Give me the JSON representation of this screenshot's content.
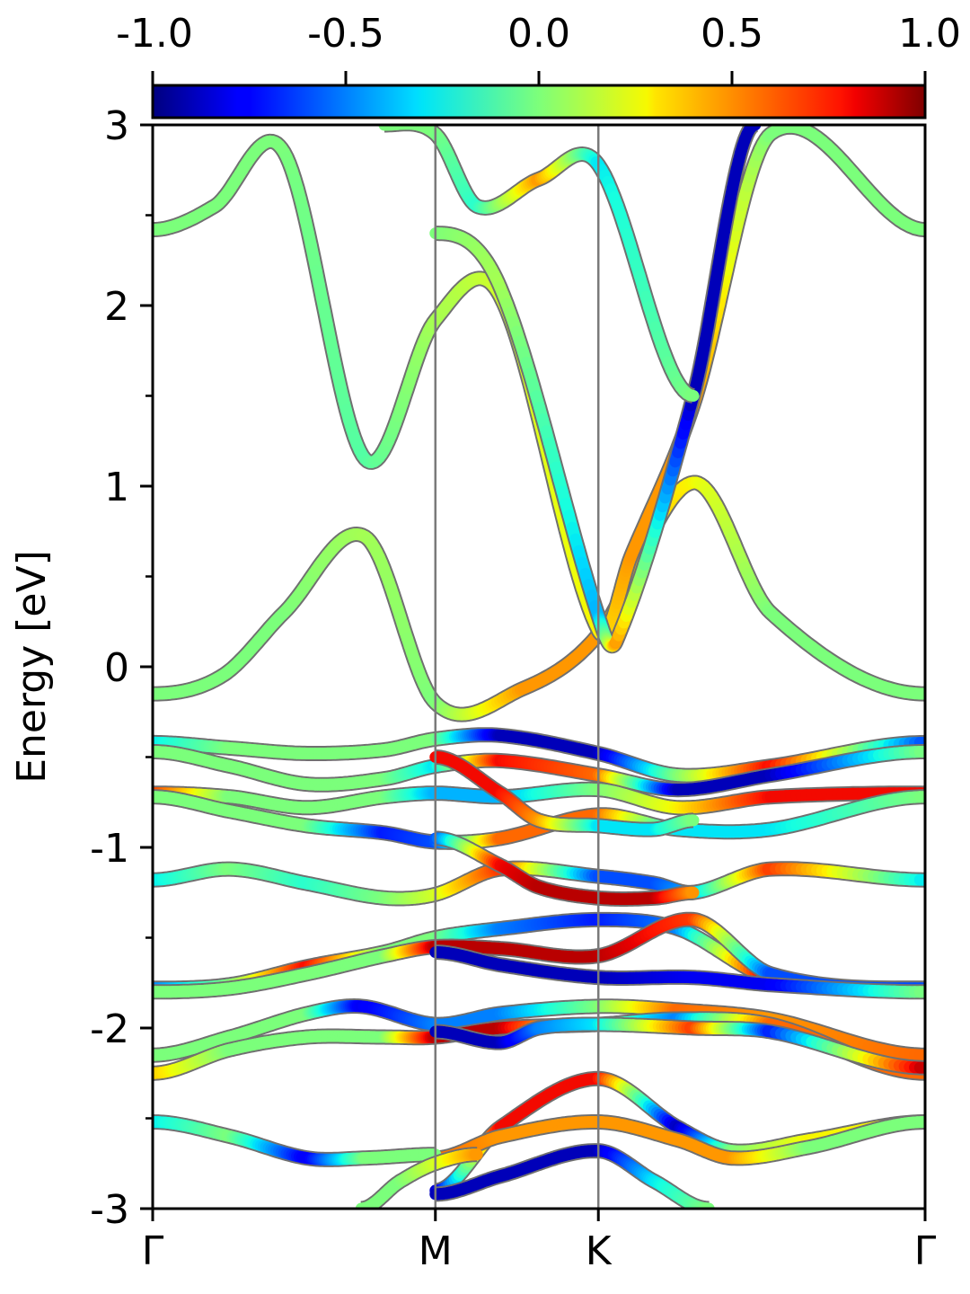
{
  "chart_data": {
    "type": "line",
    "ylabel": "Energy [eV]",
    "ylim": [
      -3,
      3
    ],
    "yticks": [
      "3",
      "2",
      "1",
      "0",
      "-1",
      "-2",
      "-3"
    ],
    "ytick_values": [
      3,
      2,
      1,
      0,
      -1,
      -2,
      -3
    ],
    "xlim": [
      0,
      1
    ],
    "kpoints": [
      {
        "label": "Γ",
        "x": 0.0
      },
      {
        "label": "M",
        "x": 0.366
      },
      {
        "label": "K",
        "x": 0.577
      },
      {
        "label": "Γ",
        "x": 1.0
      }
    ],
    "colorbar": {
      "colormap": "jet",
      "range": [
        -1.0,
        1.0
      ],
      "ticks": [
        "-1.0",
        "-0.5",
        "0.0",
        "0.5",
        "1.0"
      ],
      "tick_values": [
        -1.0,
        -0.5,
        0.0,
        0.5,
        1.0
      ]
    },
    "bands": [
      {
        "x": [
          0,
          0.09,
          0.17,
          0.275,
          0.366,
          0.48,
          0.577,
          0.7,
          0.8,
          1.0
        ],
        "y": [
          -0.15,
          -0.05,
          0.3,
          0.72,
          -0.2,
          -0.12,
          0.18,
          1.02,
          0.3,
          -0.15
        ],
        "c": [
          0.0,
          0.0,
          0.0,
          0.1,
          0.0,
          0.5,
          0.5,
          0.3,
          0.0,
          0.0
        ]
      },
      {
        "x": [
          0,
          0.08,
          0.17,
          0.275,
          0.366,
          0.45,
          0.577,
          0.62,
          0.7,
          0.8,
          1.0
        ],
        "y": [
          2.42,
          2.55,
          2.85,
          1.15,
          1.92,
          2.05,
          0.2,
          0.62,
          1.45,
          2.95,
          2.42
        ],
        "c": [
          0.0,
          0.0,
          0.0,
          -0.1,
          0.1,
          0.2,
          0.3,
          0.5,
          0.5,
          0.0,
          0.0
        ]
      },
      {
        "x": [
          0.366,
          0.45,
          0.577,
          0.6,
          0.7,
          0.78
        ],
        "y": [
          2.4,
          2.1,
          0.28,
          0.14,
          1.5,
          3.0
        ],
        "c": [
          0.0,
          0.1,
          -0.4,
          0.5,
          -0.9,
          -0.9
        ]
      },
      {
        "x": [
          0.3,
          0.366,
          0.42,
          0.5,
          0.577,
          0.7
        ],
        "y": [
          3.0,
          2.95,
          2.55,
          2.7,
          2.78,
          1.5
        ],
        "c": [
          0.0,
          0.0,
          -0.2,
          0.5,
          -0.3,
          0.0
        ]
      },
      {
        "x": [
          0,
          0.1,
          0.2,
          0.3,
          0.366,
          0.45,
          0.577,
          0.68,
          0.8,
          1.0
        ],
        "y": [
          -0.42,
          -0.45,
          -0.48,
          -0.46,
          -0.4,
          -0.38,
          -0.48,
          -0.6,
          -0.55,
          -0.42
        ],
        "c": [
          -0.3,
          0.0,
          0.0,
          0.0,
          0.0,
          -0.9,
          -0.9,
          0.0,
          0.8,
          -0.6
        ]
      },
      {
        "x": [
          0,
          0.1,
          0.2,
          0.3,
          0.366,
          0.45,
          0.577,
          0.68,
          0.8,
          1.0
        ],
        "y": [
          -0.47,
          -0.55,
          -0.65,
          -0.62,
          -0.55,
          -0.52,
          -0.6,
          -0.68,
          -0.6,
          -0.47
        ],
        "c": [
          0.0,
          0.0,
          0.0,
          0.0,
          -0.3,
          0.8,
          0.6,
          -0.9,
          -0.9,
          0.0
        ]
      },
      {
        "x": [
          0,
          0.1,
          0.2,
          0.3,
          0.366,
          0.45,
          0.577,
          0.68,
          0.8,
          1.0
        ],
        "y": [
          -0.7,
          -0.72,
          -0.78,
          -0.72,
          -0.7,
          -0.72,
          -0.68,
          -0.78,
          -0.72,
          -0.7
        ],
        "c": [
          0.7,
          0.0,
          0.0,
          0.0,
          -0.4,
          -0.4,
          0.0,
          0.3,
          0.8,
          0.8
        ]
      },
      {
        "x": [
          0,
          0.1,
          0.2,
          0.3,
          0.366,
          0.45,
          0.577,
          0.68,
          0.8,
          1.0
        ],
        "y": [
          -0.72,
          -0.8,
          -0.88,
          -0.92,
          -0.97,
          -0.95,
          -0.82,
          -0.9,
          -0.9,
          -0.72
        ],
        "c": [
          0.0,
          0.0,
          0.0,
          -0.7,
          -0.6,
          0.6,
          0.6,
          -0.3,
          -0.3,
          0.0
        ]
      },
      {
        "x": [
          0.366,
          0.45,
          0.5,
          0.577,
          0.65,
          0.7
        ],
        "y": [
          -0.5,
          -0.7,
          -0.85,
          -0.88,
          -0.9,
          -0.85
        ],
        "c": [
          0.8,
          0.8,
          0.5,
          -0.3,
          -0.3,
          0.0
        ]
      },
      {
        "x": [
          0,
          0.1,
          0.2,
          0.3,
          0.366,
          0.45,
          0.577,
          0.65,
          0.7,
          0.8,
          1.0
        ],
        "y": [
          -1.18,
          -1.12,
          -1.2,
          -1.28,
          -1.26,
          -1.12,
          -1.16,
          -1.2,
          -1.25,
          -1.12,
          -1.18
        ],
        "c": [
          -0.3,
          0.0,
          -0.2,
          0.0,
          0.2,
          0.7,
          -0.6,
          -0.6,
          -0.4,
          0.7,
          -0.3
        ]
      },
      {
        "x": [
          0.366,
          0.45,
          0.5,
          0.577,
          0.65,
          0.7
        ],
        "y": [
          -0.95,
          -1.1,
          -1.22,
          -1.28,
          -1.28,
          -1.25
        ],
        "c": [
          -0.6,
          0.8,
          0.9,
          0.9,
          0.9,
          0.5
        ]
      },
      {
        "x": [
          0,
          0.1,
          0.2,
          0.3,
          0.366,
          0.45,
          0.577,
          0.68,
          0.8,
          1.0
        ],
        "y": [
          -1.78,
          -1.76,
          -1.66,
          -1.58,
          -1.5,
          -1.45,
          -1.4,
          -1.45,
          -1.72,
          -1.78
        ],
        "c": [
          -0.5,
          0.0,
          0.8,
          0.0,
          0.0,
          -0.5,
          -0.7,
          -0.5,
          0.9,
          -0.9
        ]
      },
      {
        "x": [
          0,
          0.1,
          0.2,
          0.3,
          0.366,
          0.45,
          0.577,
          0.7,
          0.8,
          1.0
        ],
        "y": [
          -1.8,
          -1.78,
          -1.7,
          -1.6,
          -1.55,
          -1.56,
          -1.6,
          -1.4,
          -1.7,
          -1.78
        ],
        "c": [
          0.0,
          0.0,
          0.0,
          0.0,
          0.9,
          0.9,
          0.9,
          0.7,
          -0.6,
          -0.6
        ]
      },
      {
        "x": [
          0.366,
          0.45,
          0.577,
          0.7,
          0.8,
          1.0
        ],
        "y": [
          -1.58,
          -1.65,
          -1.72,
          -1.72,
          -1.76,
          -1.8
        ],
        "c": [
          -0.9,
          -0.9,
          -0.9,
          -0.8,
          -0.8,
          0.0
        ]
      },
      {
        "x": [
          0,
          0.1,
          0.2,
          0.27,
          0.366,
          0.45,
          0.577,
          0.68,
          0.8,
          1.0
        ],
        "y": [
          -2.15,
          -2.05,
          -1.92,
          -1.88,
          -1.98,
          -1.92,
          -1.88,
          -1.9,
          -1.95,
          -2.15
        ],
        "c": [
          0.0,
          0.0,
          0.0,
          -0.8,
          -0.5,
          -0.5,
          0.0,
          0.6,
          0.5,
          0.6
        ]
      },
      {
        "x": [
          0,
          0.1,
          0.2,
          0.3,
          0.366,
          0.45,
          0.577,
          0.68,
          0.8,
          1.0
        ],
        "y": [
          -2.25,
          -2.12,
          -2.05,
          -2.05,
          -2.05,
          -2.0,
          -1.98,
          -1.95,
          -1.98,
          -2.25
        ],
        "c": [
          0.4,
          0.0,
          0.0,
          0.0,
          0.9,
          0.9,
          0.0,
          -0.5,
          0.6,
          0.6
        ]
      },
      {
        "x": [
          0.366,
          0.45,
          0.5,
          0.577,
          0.7,
          0.8,
          1.0
        ],
        "y": [
          -2.02,
          -2.08,
          -2.0,
          -1.98,
          -2.0,
          -2.02,
          -2.22
        ],
        "c": [
          -0.9,
          -0.9,
          -0.5,
          -0.3,
          0.7,
          -0.7,
          0.9
        ]
      },
      {
        "x": [
          0.366,
          0.45,
          0.577,
          0.68,
          0.75,
          0.85,
          1.0
        ],
        "y": [
          -2.9,
          -2.55,
          -2.28,
          -2.55,
          -2.68,
          -2.62,
          -2.52
        ],
        "c": [
          -0.9,
          0.8,
          0.8,
          -0.9,
          0.0,
          0.3,
          0.3
        ]
      },
      {
        "x": [
          0.366,
          0.45,
          0.577,
          0.68,
          0.75,
          0.85,
          1.0
        ],
        "y": [
          -2.72,
          -2.6,
          -2.52,
          -2.62,
          -2.72,
          -2.66,
          -2.52
        ],
        "c": [
          0.6,
          0.5,
          0.5,
          0.5,
          0.5,
          0.0,
          0.0
        ]
      },
      {
        "x": [
          0,
          0.1,
          0.2,
          0.275,
          0.366
        ],
        "y": [
          -2.52,
          -2.6,
          -2.72,
          -2.72,
          -2.7
        ],
        "c": [
          -0.3,
          0.0,
          -0.8,
          0.0,
          0.0
        ]
      },
      {
        "x": [
          0.366,
          0.45,
          0.577,
          0.65,
          0.72
        ],
        "y": [
          -2.92,
          -2.82,
          -2.68,
          -2.85,
          -3.0
        ],
        "c": [
          -0.9,
          -0.9,
          -0.9,
          -0.3,
          0.0
        ]
      },
      {
        "x": [
          0.27,
          0.32,
          0.366,
          0.42
        ],
        "y": [
          -3.0,
          -2.85,
          -2.75,
          -2.7
        ],
        "c": [
          0.0,
          0.0,
          0.2,
          0.5
        ]
      }
    ]
  }
}
